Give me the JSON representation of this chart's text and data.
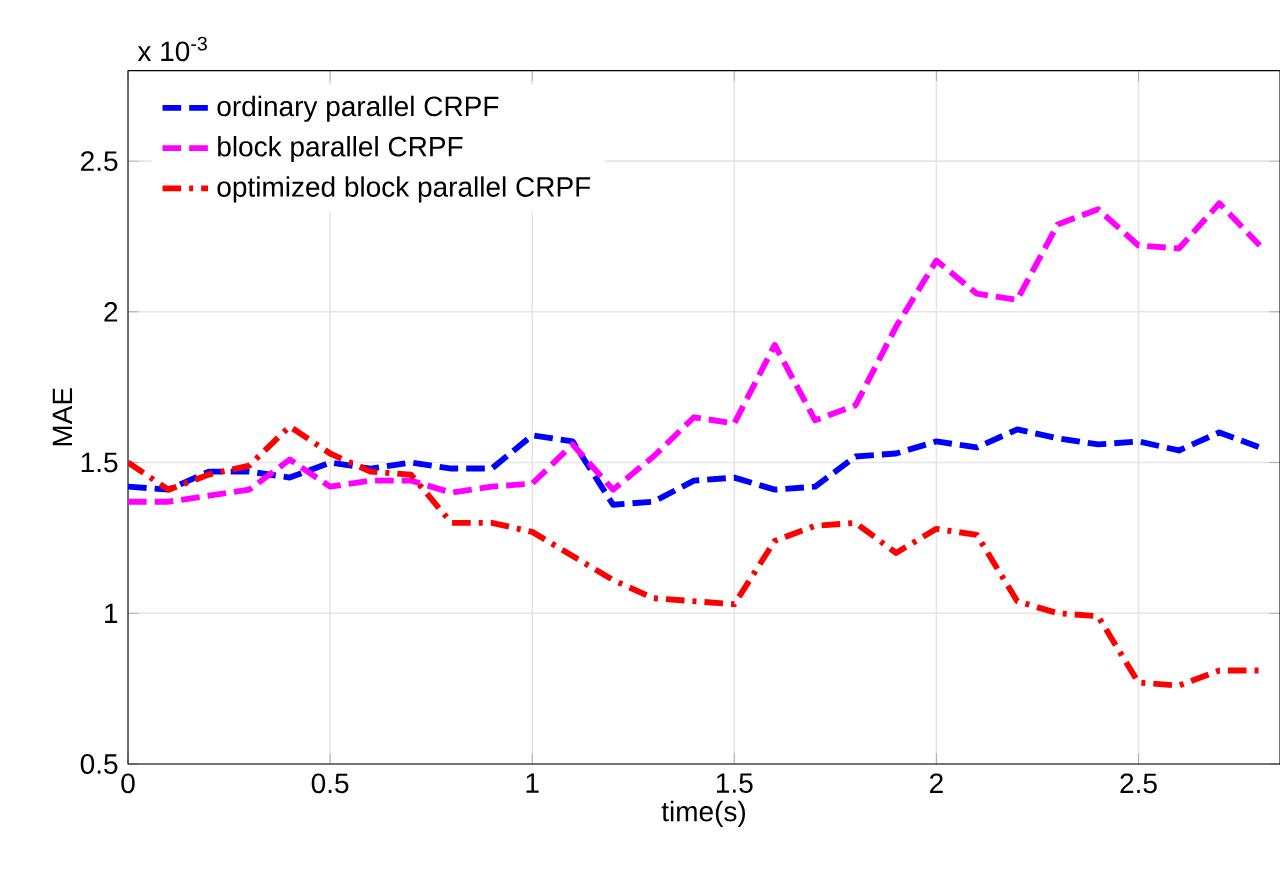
{
  "chart_data": {
    "type": "line",
    "xlabel": "time(s)",
    "ylabel": "MAE",
    "annotations": [
      "x 10$^{-3}$"
    ],
    "x": [
      0,
      0.1,
      0.2,
      0.3,
      0.4,
      0.5,
      0.6,
      0.7,
      0.8,
      0.9,
      1.0,
      1.1,
      1.2,
      1.3,
      1.4,
      1.5,
      1.6,
      1.7,
      1.8,
      1.9,
      2.0,
      2.1,
      2.2,
      2.3,
      2.4,
      2.5,
      2.6,
      2.7,
      2.8
    ],
    "series": [
      {
        "name": "ordinary parallel CRPF",
        "color": "#0000ff",
        "line_style": "dashed",
        "values": [
          1.42,
          1.41,
          1.47,
          1.47,
          1.45,
          1.5,
          1.48,
          1.5,
          1.48,
          1.48,
          1.59,
          1.57,
          1.36,
          1.37,
          1.44,
          1.45,
          1.41,
          1.42,
          1.52,
          1.53,
          1.57,
          1.55,
          1.61,
          1.58,
          1.56,
          1.57,
          1.54,
          1.6,
          1.55
        ]
      },
      {
        "name": "block parallel CRPF",
        "color": "#ff00ff",
        "line_style": "dashed",
        "values": [
          1.37,
          1.37,
          1.39,
          1.41,
          1.51,
          1.42,
          1.44,
          1.44,
          1.4,
          1.42,
          1.43,
          1.56,
          1.41,
          1.52,
          1.65,
          1.63,
          1.89,
          1.64,
          1.69,
          1.95,
          2.17,
          2.06,
          2.04,
          2.29,
          2.34,
          2.22,
          2.21,
          2.36,
          2.22
        ]
      },
      {
        "name": "optimized block parallel CRPF",
        "color": "#ff0000",
        "line_style": "dashdot",
        "values": [
          1.5,
          1.41,
          1.46,
          1.49,
          1.62,
          1.53,
          1.47,
          1.46,
          1.3,
          1.3,
          1.27,
          1.19,
          1.11,
          1.05,
          1.04,
          1.03,
          1.24,
          1.29,
          1.3,
          1.2,
          1.28,
          1.26,
          1.04,
          1.0,
          0.99,
          0.77,
          0.76,
          0.81,
          0.81
        ]
      }
    ],
    "xlim": [
      0,
      2.85
    ],
    "ylim": [
      0.5,
      2.8
    ],
    "xticks": [
      0,
      0.5,
      1,
      1.5,
      2,
      2.5
    ],
    "yticks": [
      0.5,
      1,
      1.5,
      2,
      2.5
    ],
    "grid": true,
    "legend": "top left",
    "marker": "none"
  }
}
